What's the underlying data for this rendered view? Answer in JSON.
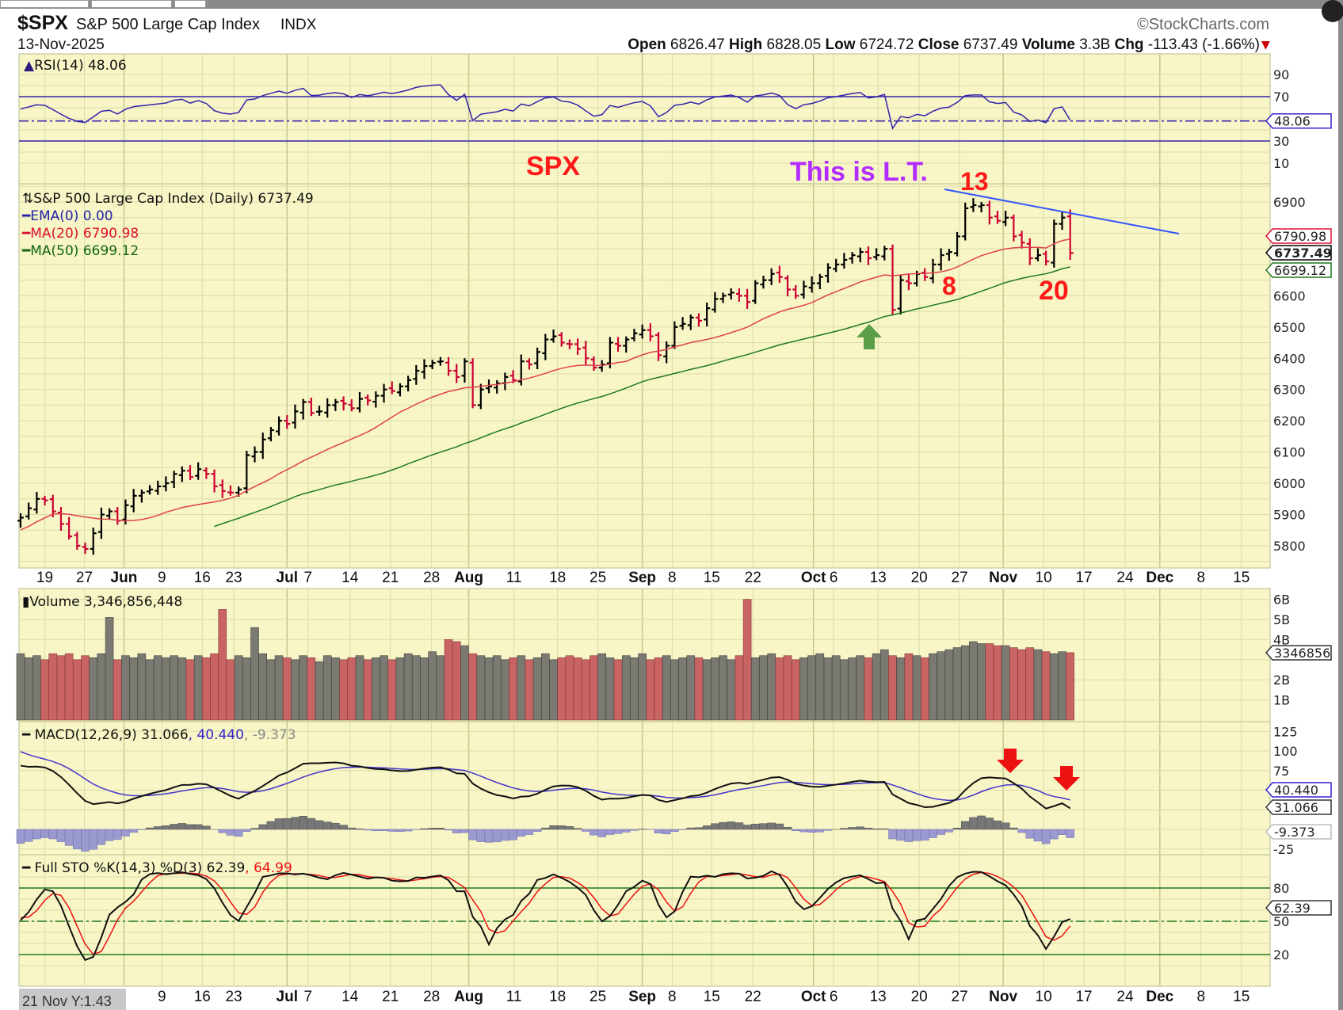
{
  "header": {
    "symbol": "$SPX",
    "name": "S&P 500 Large Cap Index",
    "exchange": "INDX",
    "date": "13-Nov-2025",
    "watermark": "©StockCharts.com",
    "open_label": "Open",
    "open": "6826.47",
    "high_label": "High",
    "high": "6828.05",
    "low_label": "Low",
    "low": "6724.72",
    "close_label": "Close",
    "close": "6737.49",
    "volume_label": "Volume",
    "volume": "3.3B",
    "chg_label": "Chg",
    "chg": "-113.43 (-1.66%)",
    "chg_arrow": "▼"
  },
  "colors": {
    "background": "#f8f6c6",
    "grid": "#d9dba8",
    "up": "#000000",
    "down": "#cc0033",
    "ma20": "#e0404a",
    "ma50": "#1f7a1f",
    "ema": "#2222aa",
    "rsi": "#3322aa",
    "trendline": "#3355ff",
    "annot_red": "#ff1a1a",
    "annot_purple": "#b22cff",
    "arrow_green": "#5c9e48"
  },
  "annotations": {
    "spx": "SPX",
    "lt": "This is L.T.",
    "label_13": "13",
    "label_8": "8",
    "label_20": "20"
  },
  "cursor_readout": "21 Nov Y:1.43",
  "chart_data": {
    "type": "ohlc",
    "title": "S&P 500 Large Cap Index (Daily) 6737.49",
    "x_ticks": [
      {
        "label": "19",
        "idx": 3.0,
        "bold": false
      },
      {
        "label": "27",
        "idx": 7.9,
        "bold": false
      },
      {
        "label": "Jun",
        "idx": 12.8,
        "bold": true
      },
      {
        "label": "9",
        "idx": 17.5,
        "bold": false
      },
      {
        "label": "16",
        "idx": 22.5,
        "bold": false
      },
      {
        "label": "23",
        "idx": 26.4,
        "bold": false
      },
      {
        "label": "Jul",
        "idx": 33.0,
        "bold": true
      },
      {
        "label": "7",
        "idx": 35.6,
        "bold": false
      },
      {
        "label": "14",
        "idx": 40.8,
        "bold": false
      },
      {
        "label": "21",
        "idx": 45.8,
        "bold": false
      },
      {
        "label": "28",
        "idx": 50.9,
        "bold": false
      },
      {
        "label": "Aug",
        "idx": 55.5,
        "bold": true
      },
      {
        "label": "11",
        "idx": 61.1,
        "bold": false
      },
      {
        "label": "18",
        "idx": 66.5,
        "bold": false
      },
      {
        "label": "25",
        "idx": 71.5,
        "bold": false
      },
      {
        "label": "Sep",
        "idx": 77.0,
        "bold": true
      },
      {
        "label": "8",
        "idx": 80.7,
        "bold": false
      },
      {
        "label": "15",
        "idx": 85.6,
        "bold": false
      },
      {
        "label": "22",
        "idx": 90.7,
        "bold": false
      },
      {
        "label": "Oct",
        "idx": 98.2,
        "bold": true
      },
      {
        "label": "6",
        "idx": 100.7,
        "bold": false
      },
      {
        "label": "13",
        "idx": 106.2,
        "bold": false
      },
      {
        "label": "20",
        "idx": 111.3,
        "bold": false
      },
      {
        "label": "27",
        "idx": 116.3,
        "bold": false
      },
      {
        "label": "Nov",
        "idx": 121.7,
        "bold": true
      },
      {
        "label": "10",
        "idx": 126.7,
        "bold": false
      },
      {
        "label": "17",
        "idx": 131.7,
        "bold": false
      },
      {
        "label": "24",
        "idx": 136.8,
        "bold": false
      },
      {
        "label": "Dec",
        "idx": 141.1,
        "bold": true
      },
      {
        "label": "8",
        "idx": 146.2,
        "bold": false
      },
      {
        "label": "15",
        "idx": 151.2,
        "bold": false
      }
    ],
    "prior_closes": [
      5600,
      5580,
      5520,
      5570,
      5610,
      5640,
      5670,
      5700,
      5650,
      5580,
      5400,
      5100,
      4980,
      5060,
      5000,
      5450,
      5270,
      5300,
      5280,
      5160,
      5280,
      5290,
      5375,
      5480,
      5520,
      5530,
      5560,
      5600,
      5650,
      5680,
      5690,
      5660,
      5700,
      5660,
      5840,
      5880,
      5890,
      5870,
      5910,
      5960,
      5920,
      5950,
      5960,
      5940,
      5915,
      5860,
      5840,
      5800,
      5880
    ],
    "closes": [
      5890,
      5920,
      5950,
      5945,
      5910,
      5870,
      5830,
      5800,
      5790,
      5840,
      5900,
      5910,
      5880,
      5930,
      5960,
      5970,
      5980,
      5990,
      6000,
      6030,
      6040,
      6020,
      6045,
      6030,
      5990,
      5975,
      5970,
      5980,
      6090,
      6100,
      6140,
      6170,
      6200,
      6190,
      6230,
      6260,
      6225,
      6230,
      6250,
      6260,
      6255,
      6240,
      6270,
      6265,
      6280,
      6300,
      6295,
      6310,
      6330,
      6360,
      6375,
      6385,
      6390,
      6360,
      6340,
      6390,
      6250,
      6300,
      6310,
      6320,
      6340,
      6330,
      6390,
      6380,
      6420,
      6460,
      6470,
      6450,
      6445,
      6430,
      6400,
      6370,
      6380,
      6450,
      6440,
      6460,
      6480,
      6490,
      6470,
      6410,
      6440,
      6500,
      6510,
      6530,
      6520,
      6560,
      6590,
      6600,
      6610,
      6600,
      6580,
      6640,
      6650,
      6670,
      6660,
      6620,
      6600,
      6630,
      6640,
      6660,
      6690,
      6700,
      6715,
      6730,
      6740,
      6720,
      6730,
      6750,
      6555,
      6650,
      6640,
      6670,
      6660,
      6700,
      6730,
      6740,
      6790,
      6880,
      6890,
      6890,
      6850,
      6840,
      6850,
      6790,
      6770,
      6720,
      6730,
      6710,
      6830,
      6850,
      6737
    ],
    "volumes_billions": [
      3.3,
      3.1,
      3.2,
      3.0,
      3.3,
      3.2,
      3.3,
      3.0,
      3.2,
      3.1,
      3.3,
      5.1,
      3.0,
      3.2,
      3.1,
      3.3,
      3.0,
      3.2,
      3.1,
      3.2,
      3.1,
      3.0,
      3.2,
      3.1,
      3.3,
      5.5,
      3.0,
      3.2,
      3.1,
      4.6,
      3.3,
      3.0,
      3.2,
      3.1,
      3.0,
      3.2,
      3.1,
      2.9,
      3.2,
      3.1,
      3.0,
      3.1,
      3.2,
      3.0,
      3.1,
      3.2,
      3.0,
      3.1,
      3.3,
      3.2,
      3.1,
      3.4,
      3.2,
      4.0,
      3.9,
      3.7,
      3.3,
      3.2,
      3.1,
      3.2,
      3.0,
      3.1,
      3.2,
      3.0,
      3.1,
      3.3,
      3.0,
      3.1,
      3.2,
      3.1,
      3.0,
      3.2,
      3.3,
      3.1,
      3.0,
      3.2,
      3.1,
      3.3,
      3.0,
      3.1,
      3.2,
      3.0,
      3.1,
      3.2,
      3.1,
      3.0,
      3.1,
      3.2,
      3.0,
      3.2,
      6.0,
      3.1,
      3.2,
      3.3,
      3.1,
      3.2,
      3.0,
      3.1,
      3.2,
      3.3,
      3.1,
      3.2,
      3.0,
      3.1,
      3.2,
      3.1,
      3.3,
      3.5,
      3.2,
      3.1,
      3.3,
      3.2,
      3.1,
      3.3,
      3.4,
      3.5,
      3.6,
      3.7,
      3.9,
      3.8,
      3.8,
      3.7,
      3.7,
      3.6,
      3.5,
      3.6,
      3.5,
      3.4,
      3.3,
      3.4,
      3.35
    ],
    "price_axis": {
      "ticks": [
        6900,
        6600,
        6500,
        6400,
        6300,
        6200,
        6100,
        6000,
        5900,
        5800
      ],
      "range": [
        5740,
        6960
      ]
    },
    "rsi_axis": {
      "ticks": [
        90,
        70,
        30,
        10
      ],
      "range": [
        0,
        100
      ]
    },
    "volume_axis": {
      "ticks": [
        "6B",
        "5B",
        "4B",
        "2B",
        "1B"
      ],
      "tick_values": [
        6,
        5,
        4,
        2,
        1
      ]
    },
    "macd_axis": {
      "ticks": [
        125,
        100,
        75,
        -25
      ],
      "range": [
        -35,
        135
      ]
    },
    "sto_axis": {
      "ticks": [
        80,
        50,
        20
      ],
      "range": [
        0,
        100
      ]
    },
    "legends": {
      "rsi": "RSI(14) 48.06",
      "price": "S&P 500 Large Cap Index (Daily) 6737.49",
      "ema": "EMA(0) 0.00",
      "ma20": "MA(20) 6790.98",
      "ma50": "MA(50) 6699.12",
      "volume": "Volume 3,346,856,448",
      "macd_main": "MACD(12,26,9) 31.066",
      "macd_signal": ", 40.440",
      "macd_hist": ", -9.373",
      "sto_main": "Full STO %K(14,3) %D(3) 62.39",
      "sto_d": ", 64.99"
    },
    "flags": {
      "rsi": "48.06",
      "ma20": "6790.98",
      "close": "6737.49",
      "ma50": "6699.12",
      "volume": "3346856",
      "macd_signal": "40.440",
      "macd": "31.066",
      "macd_hist": "-9.373",
      "sto": "62.39"
    }
  }
}
